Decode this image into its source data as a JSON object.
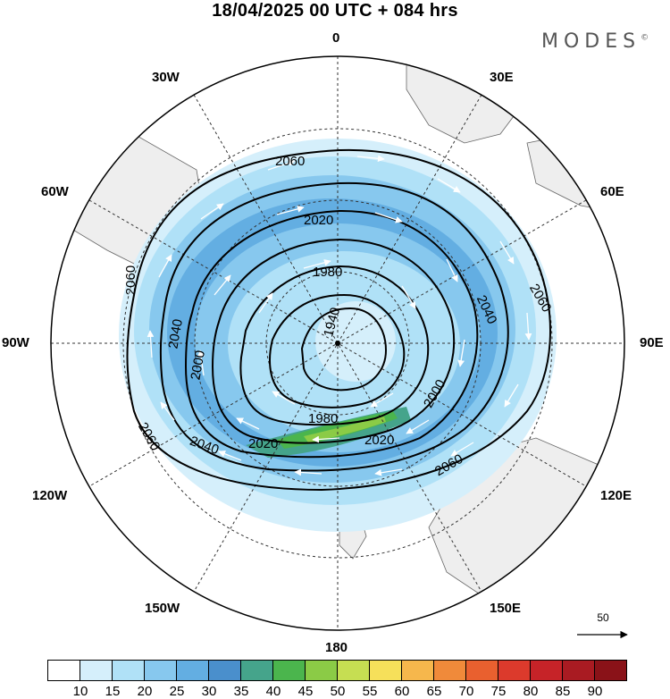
{
  "title": "18/04/2025  00 UTC  + 084 hrs",
  "brand": "MODES",
  "brand_mark": "©",
  "longitude_labels": {
    "n": "0",
    "e30": "30E",
    "e60": "60E",
    "e90": "90E",
    "e120": "120E",
    "e150": "150E",
    "s": "180",
    "w150": "150W",
    "w120": "120W",
    "w90": "90W",
    "w60": "60W",
    "w30": "30W"
  },
  "contour_labels": [
    "2060",
    "2020",
    "1980",
    "1940",
    "2060",
    "2040",
    "2060",
    "2040",
    "2000",
    "2000",
    "1980",
    "2020",
    "2020",
    "2040",
    "2060",
    "2060"
  ],
  "reference_vector": {
    "value": "50"
  },
  "colorbar": {
    "colors": [
      "#ffffff",
      "#d5effb",
      "#b0e1f7",
      "#87c8ee",
      "#63aee2",
      "#4a8fcc",
      "#45a48b",
      "#4bb54d",
      "#8bcb46",
      "#c6de52",
      "#f6e05a",
      "#f6b74c",
      "#f08a3a",
      "#e9602f",
      "#dc3a2c",
      "#c62328",
      "#a91b22",
      "#8a1218"
    ],
    "labels": [
      "10",
      "15",
      "20",
      "25",
      "30",
      "35",
      "40",
      "45",
      "50",
      "55",
      "60",
      "65",
      "70",
      "75",
      "80",
      "85",
      "90"
    ]
  }
}
